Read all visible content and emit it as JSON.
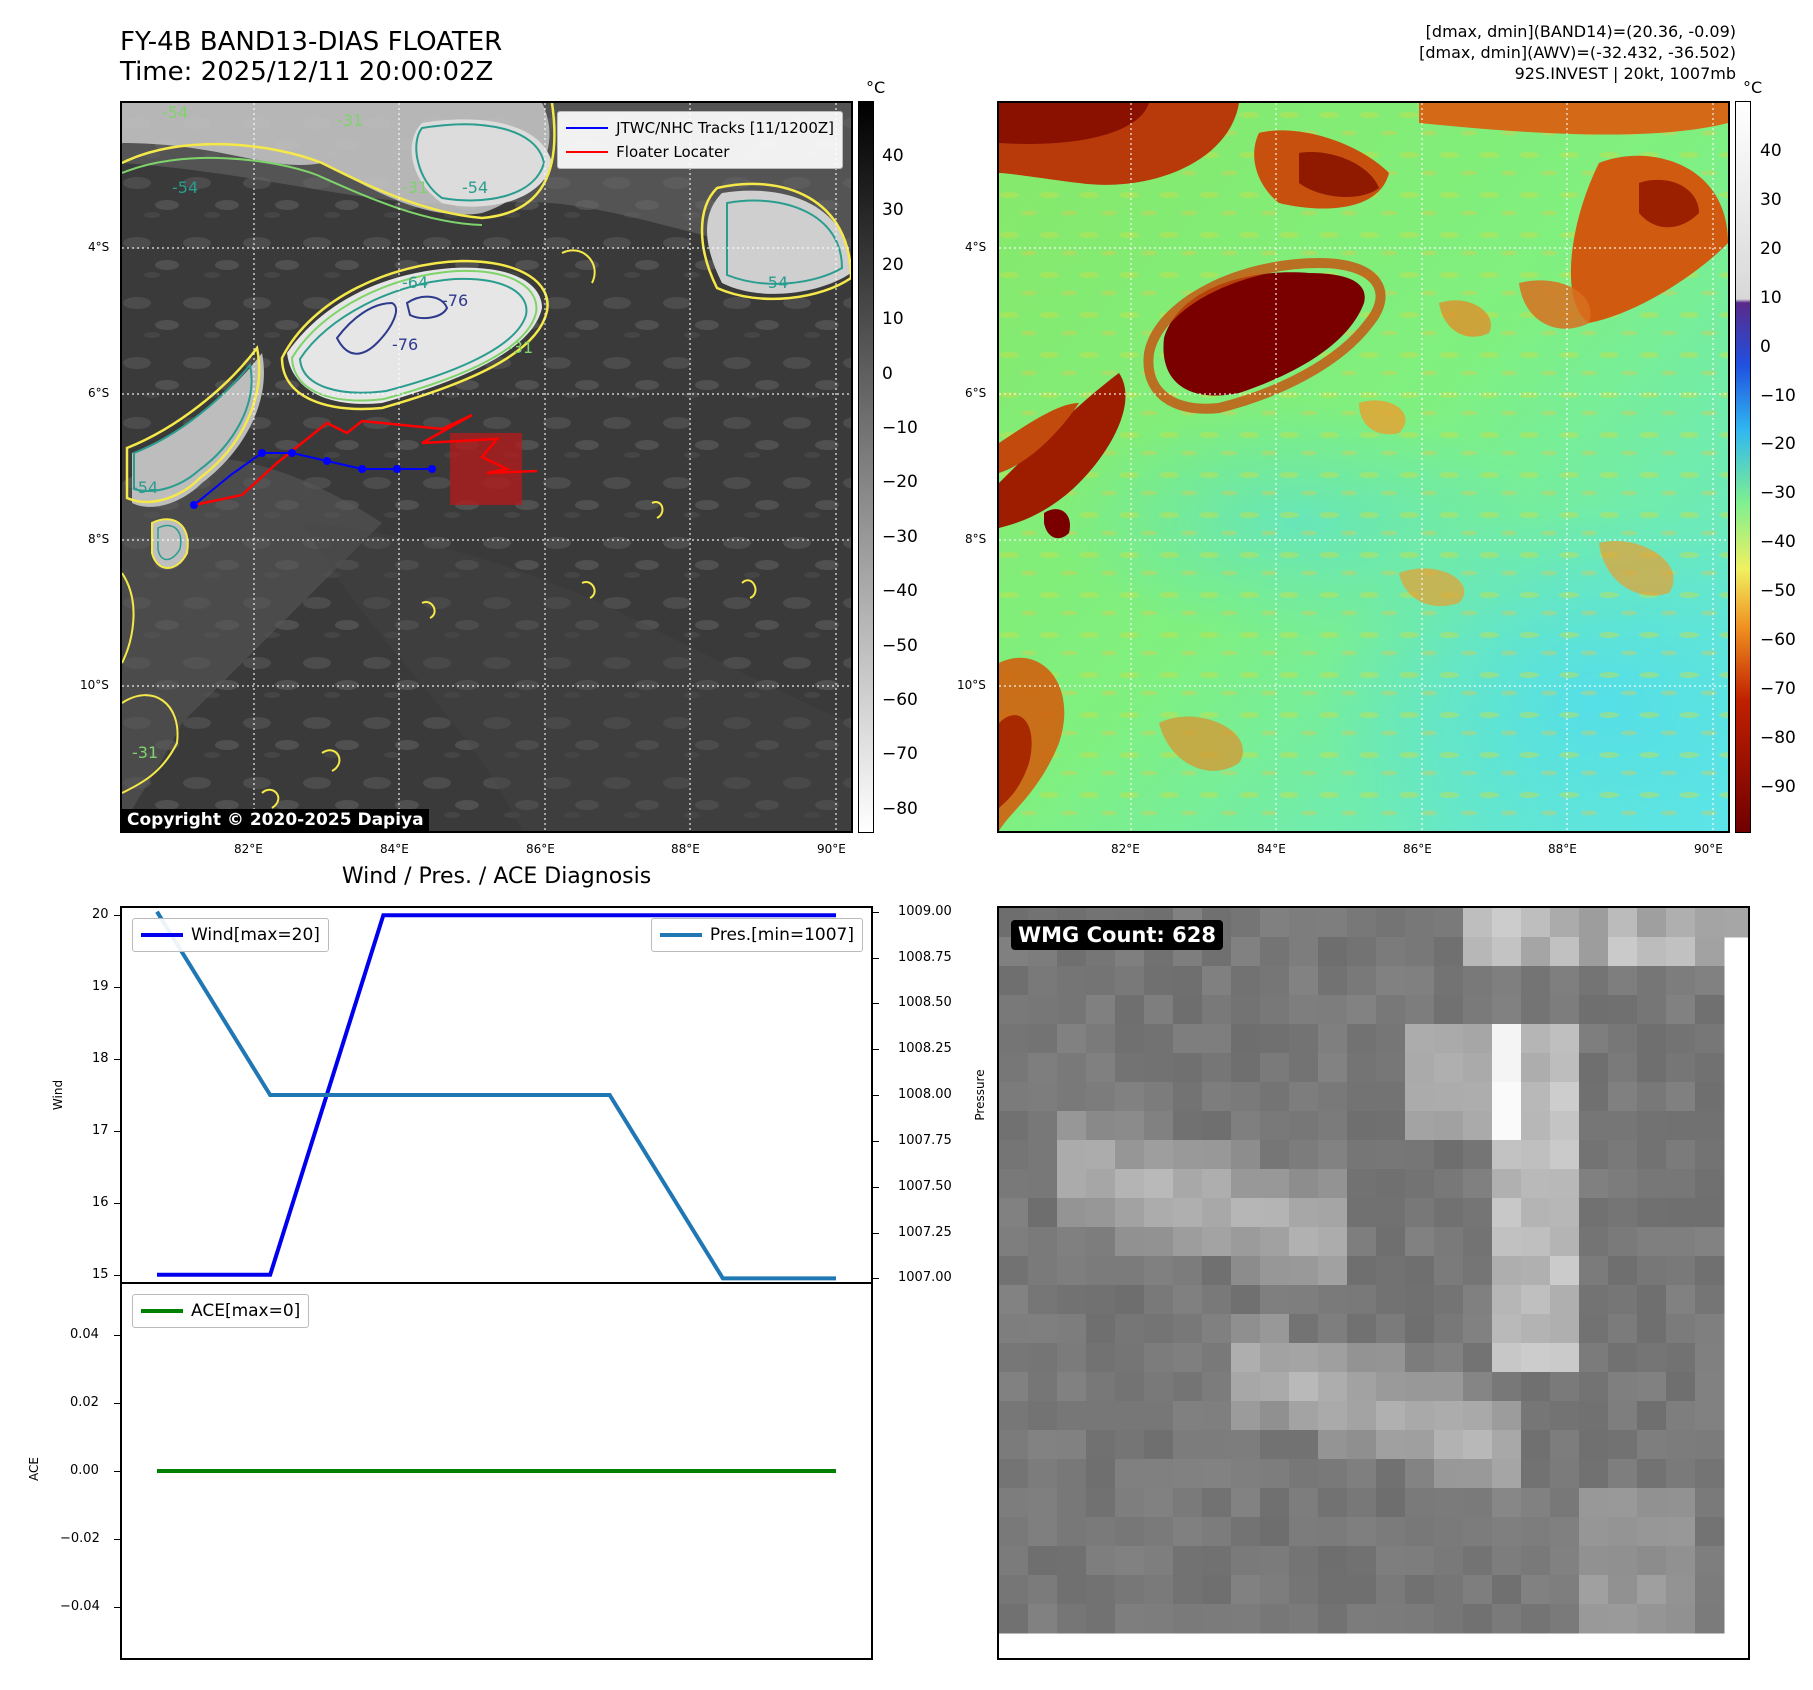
{
  "header": {
    "title_line1": "FY-4B BAND13-DIAS FLOATER",
    "title_line2": "Time: 2025/12/11 20:00:02Z",
    "info_line1": "[dmax, dmin](BAND14)=(20.36, -0.09)",
    "info_line2": "[dmax, dmin](AWV)=(-32.432, -36.502)",
    "info_line3": "92S.INVEST | 20kt, 1007mb"
  },
  "map_axes": {
    "lat_labels": [
      "4°S",
      "6°S",
      "8°S",
      "10°S"
    ],
    "lon_labels": [
      "82°E",
      "84°E",
      "86°E",
      "88°E",
      "90°E"
    ]
  },
  "ir_panel": {
    "legend": [
      "JTWC/NHC Tracks [11/1200Z]",
      "Floater Locater"
    ],
    "copyright": "Copyright © 2020-2025 Dapiya",
    "contour_labels": [
      "-54",
      "-31",
      "-54",
      "-31",
      "-54",
      "-64",
      "-76",
      "-76",
      "-31",
      "-54",
      "-54",
      "-31"
    ],
    "colorbar_unit": "°C",
    "colorbar_ticks": [
      "40",
      "30",
      "20",
      "10",
      "0",
      "−10",
      "−20",
      "−30",
      "−40",
      "−50",
      "−60",
      "−70",
      "−80"
    ],
    "colors": {
      "track": "#0000ff",
      "locator": "#ff0000",
      "contour_outer": "#f5e94a",
      "contour_mid": "#7ed36a",
      "contour_inner": "#2a9d8f",
      "contour_core": "#2e3a8c"
    }
  },
  "wv_panel": {
    "colorbar_unit": "°C",
    "colorbar_ticks": [
      "40",
      "30",
      "20",
      "10",
      "0",
      "−10",
      "−20",
      "−30",
      "−40",
      "−50",
      "−60",
      "−70",
      "−80",
      "−90"
    ]
  },
  "diagnosis": {
    "title": "Wind / Pres. / ACE Diagnosis",
    "wind_ylabel": "Wind",
    "pres_ylabel": "Pressure",
    "ace_ylabel": "ACE",
    "wind_legend": "Wind[max=20]",
    "pres_legend": "Pres.[min=1007]",
    "ace_legend": "ACE[max=0]",
    "wind_ticks": [
      "20",
      "19",
      "18",
      "17",
      "16",
      "15"
    ],
    "pres_ticks": [
      "1009.00",
      "1008.75",
      "1008.50",
      "1008.25",
      "1008.00",
      "1007.75",
      "1007.50",
      "1007.25",
      "1007.00"
    ],
    "ace_ticks": [
      "0.04",
      "0.02",
      "0.00",
      "−0.02",
      "−0.04"
    ]
  },
  "wmg_panel": {
    "label": "WMG Count: 628"
  },
  "chart_data": [
    {
      "type": "line",
      "title": "Wind / Pres. / ACE Diagnosis",
      "x": [
        0,
        1,
        2,
        3,
        4,
        5,
        6
      ],
      "series": [
        {
          "name": "Wind[max=20]",
          "axis": "left",
          "values": [
            15,
            15,
            20,
            20,
            20,
            20,
            20
          ],
          "color": "#0000ee"
        },
        {
          "name": "Pres.[min=1007]",
          "axis": "right",
          "values": [
            1009,
            1008,
            1008,
            1008,
            1008,
            1007,
            1007
          ],
          "color": "#1f77b4"
        }
      ],
      "ylabel": "Wind",
      "ylim": [
        14.9,
        20.1
      ],
      "y2label": "Pressure",
      "y2lim": [
        1006.98,
        1009.02
      ]
    },
    {
      "type": "line",
      "x": [
        0,
        1,
        2,
        3,
        4,
        5,
        6
      ],
      "series": [
        {
          "name": "ACE[max=0]",
          "values": [
            0,
            0,
            0,
            0,
            0,
            0,
            0
          ],
          "color": "#008000"
        }
      ],
      "ylabel": "ACE",
      "ylim": [
        -0.055,
        0.055
      ]
    }
  ]
}
